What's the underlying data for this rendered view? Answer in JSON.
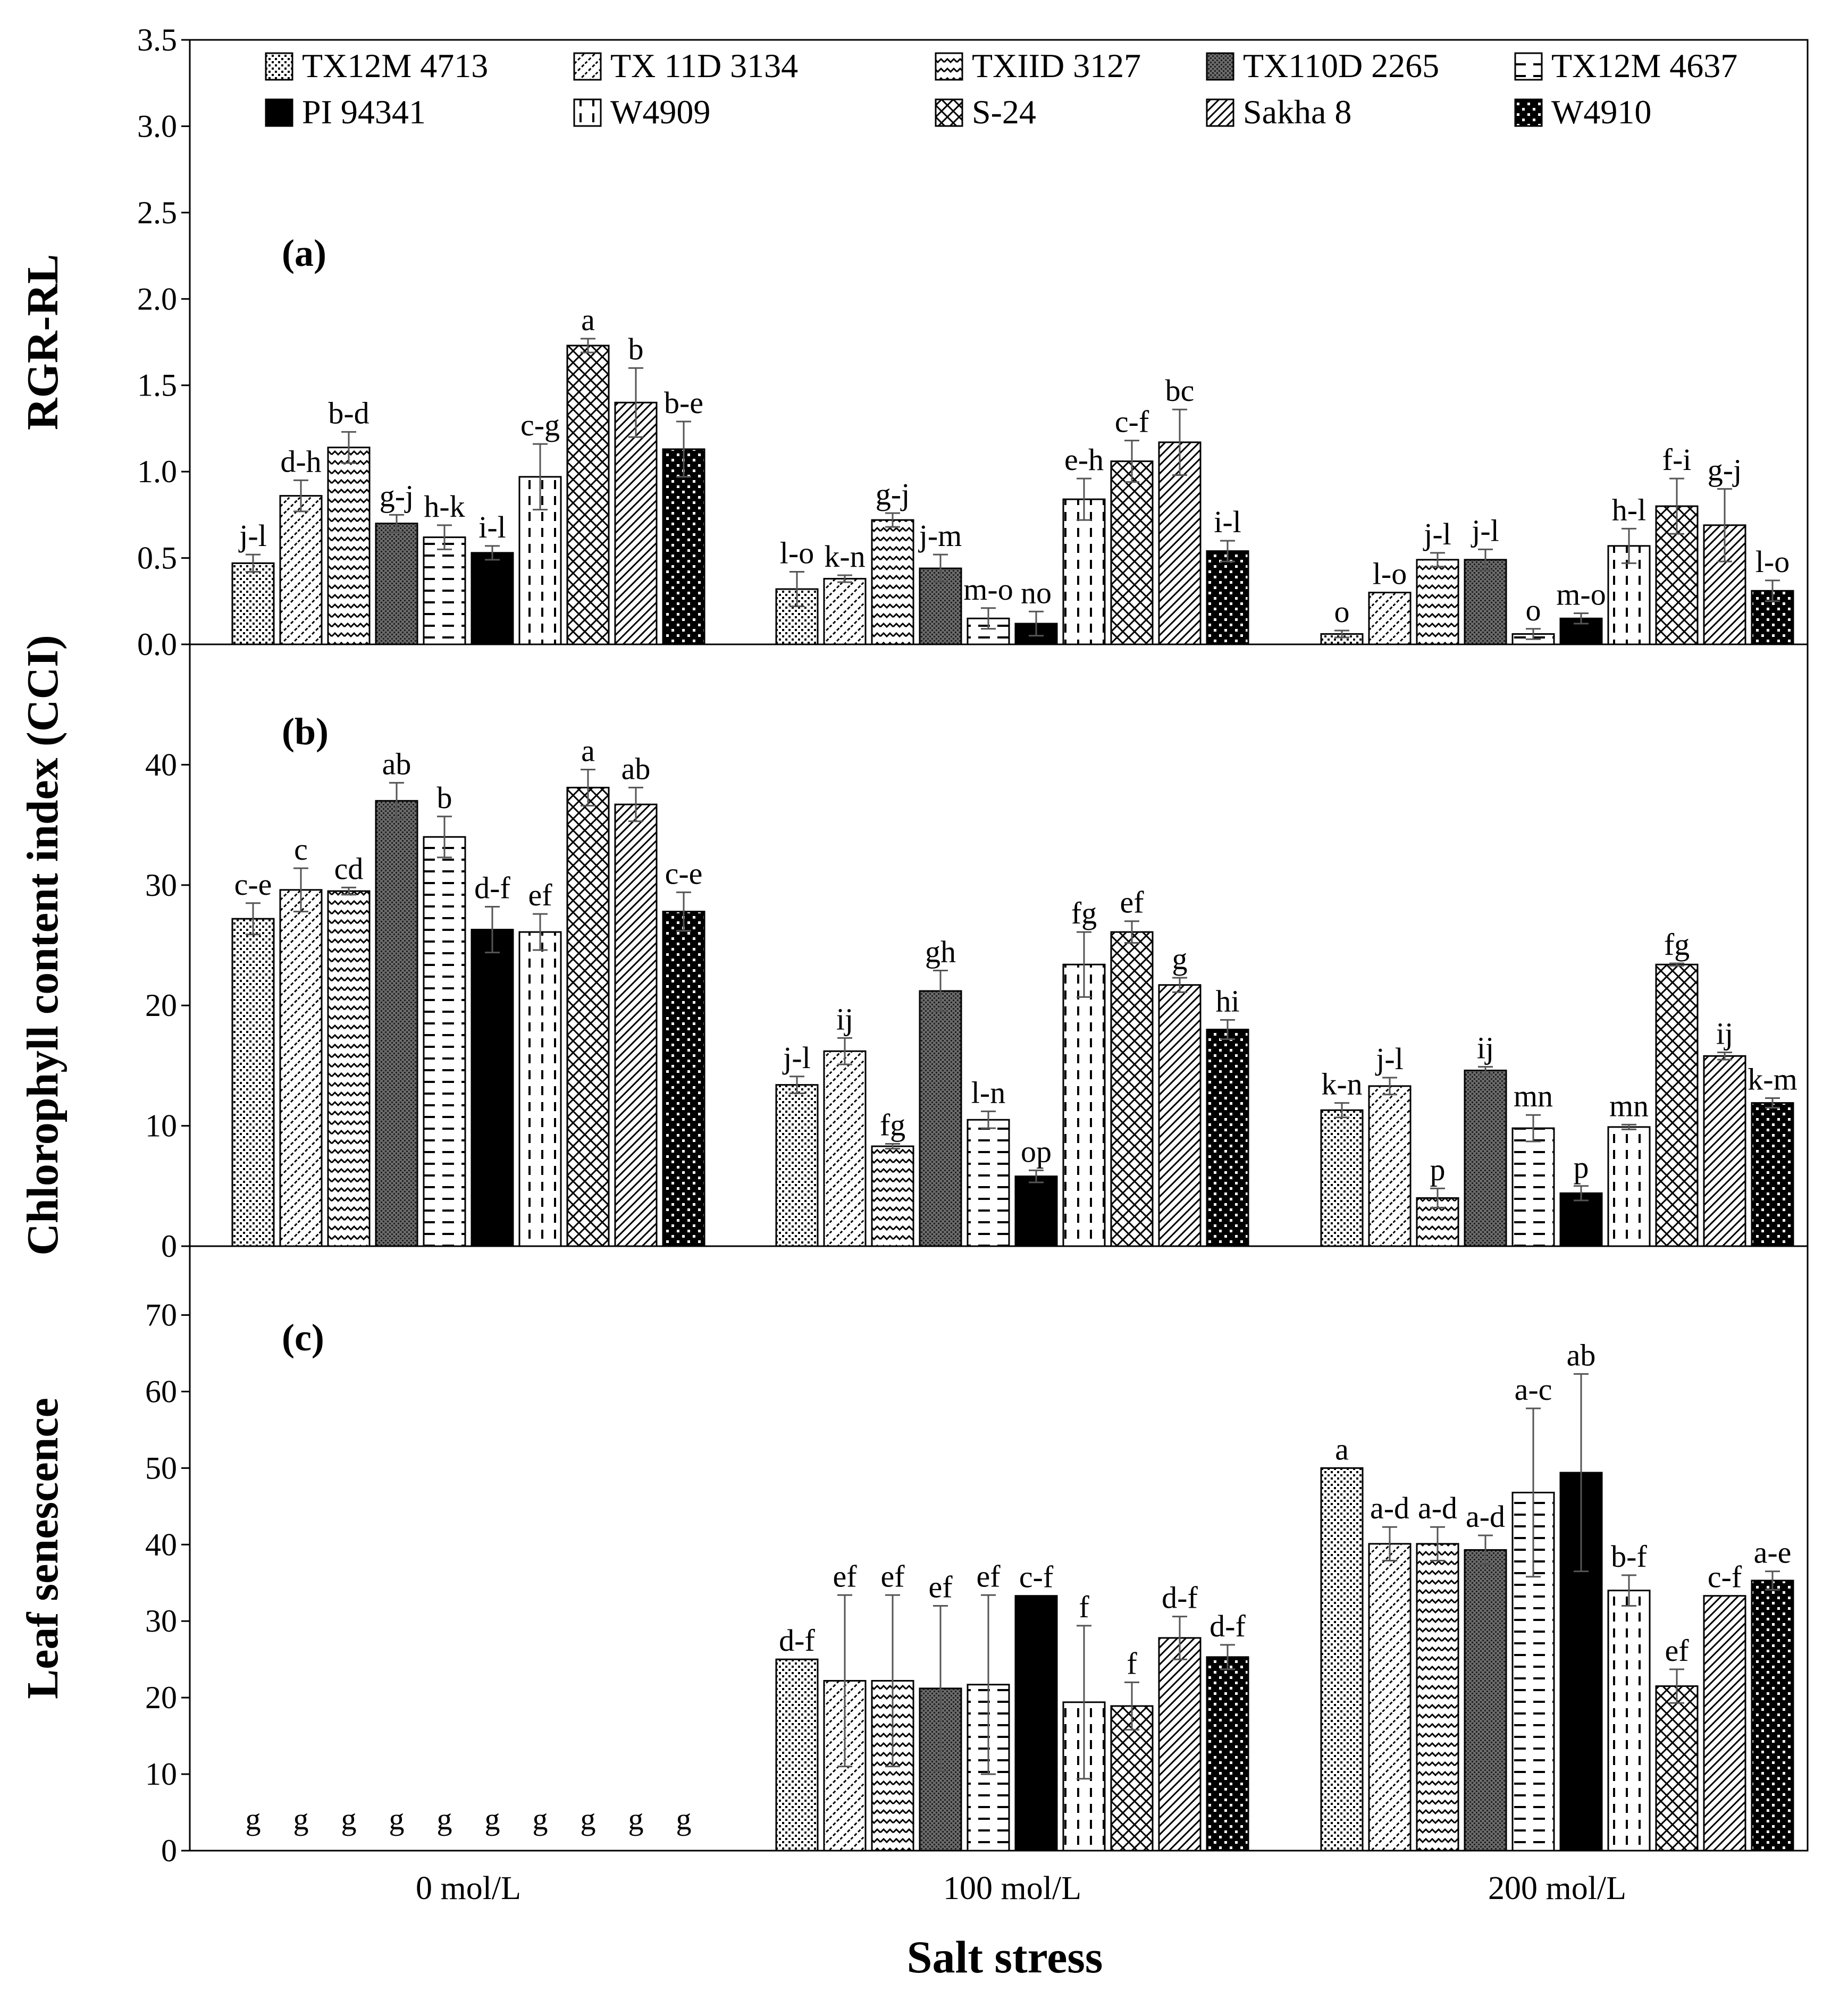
{
  "chart_data": {
    "type": "bar",
    "xlabel": "Salt stress",
    "categories": [
      "0 mol/L",
      "100 mol/L",
      "200 mol/L"
    ],
    "legend": [
      "TX12M 4713",
      "TX 11D 3134",
      "TXIID 3127",
      "TX110D 2265",
      "TX12M 4637",
      "PI 94341",
      "W4909",
      "S-24",
      "Sakha 8",
      "W4910"
    ],
    "panels": [
      {
        "label": "(a)",
        "ylabel": "RGR-RL",
        "ylim": [
          0,
          3.5
        ],
        "yticks": [
          "0.0",
          "0.5",
          "1.0",
          "1.5",
          "2.0",
          "2.5",
          "3.0",
          "3.5"
        ],
        "series_values": [
          [
            0.47,
            0.86,
            1.14,
            0.7,
            0.62,
            0.53,
            0.97,
            1.73,
            1.4,
            1.13
          ],
          [
            0.32,
            0.38,
            0.72,
            0.44,
            0.15,
            0.12,
            0.84,
            1.06,
            1.17,
            0.54
          ],
          [
            0.06,
            0.3,
            0.49,
            0.49,
            0.06,
            0.15,
            0.57,
            0.8,
            0.69,
            0.31
          ]
        ],
        "errors": [
          [
            0.05,
            0.09,
            0.09,
            0.05,
            0.07,
            0.04,
            0.19,
            0.04,
            0.2,
            0.16
          ],
          [
            0.1,
            0.02,
            0.04,
            0.08,
            0.06,
            0.07,
            0.12,
            0.12,
            0.19,
            0.06
          ],
          [
            0.02,
            0.0,
            0.04,
            0.06,
            0.03,
            0.03,
            0.1,
            0.16,
            0.21,
            0.06
          ]
        ],
        "letters": [
          [
            "j-l",
            "d-h",
            "b-d",
            "g-j",
            "h-k",
            "i-l",
            "c-g",
            "a",
            "b",
            "b-e"
          ],
          [
            "l-o",
            "k-n",
            "g-j",
            "j-m",
            "m-o",
            "no",
            "e-h",
            "c-f",
            "bc",
            "i-l"
          ],
          [
            "o",
            "l-o",
            "j-l",
            "j-l",
            "o",
            "m-o",
            "h-l",
            "f-i",
            "g-j",
            "l-o"
          ]
        ]
      },
      {
        "label": "(b)",
        "ylabel": "Chlorophyll content index (CCI)",
        "ylim": [
          0,
          50
        ],
        "yticks": [
          "0",
          "10",
          "20",
          "30",
          "40"
        ],
        "series_values": [
          [
            27.2,
            29.6,
            29.5,
            37.0,
            34.0,
            26.3,
            26.1,
            38.1,
            36.7,
            27.8
          ],
          [
            13.4,
            16.2,
            8.3,
            21.2,
            10.5,
            5.8,
            23.4,
            26.1,
            21.7,
            18.0
          ],
          [
            11.3,
            13.3,
            4.0,
            14.6,
            9.8,
            4.4,
            9.9,
            23.4,
            15.8,
            11.9
          ]
        ],
        "errors": [
          [
            1.3,
            1.8,
            0.3,
            1.5,
            1.7,
            1.9,
            1.5,
            1.5,
            1.4,
            1.6
          ],
          [
            0.7,
            1.1,
            0.2,
            1.7,
            0.7,
            0.5,
            2.7,
            0.9,
            0.6,
            0.8
          ],
          [
            0.6,
            0.7,
            0.8,
            0.3,
            1.1,
            0.6,
            0.2,
            0.1,
            0.3,
            0.4
          ]
        ],
        "letters": [
          [
            "c-e",
            "c",
            "cd",
            "ab",
            "b",
            "d-f",
            "ef",
            "a",
            "ab",
            "c-e"
          ],
          [
            "j-l",
            "ij",
            "fg",
            "gh",
            "l-n",
            "op",
            "fg",
            "ef",
            "g",
            "hi"
          ],
          [
            "k-n",
            "j-l",
            "p",
            "ij",
            "mn",
            "p",
            "mn",
            "fg",
            "ij",
            "k-m"
          ]
        ]
      },
      {
        "label": "(c)",
        "ylabel": "Leaf senescence",
        "ylim": [
          0,
          79
        ],
        "yticks": [
          "0",
          "10",
          "20",
          "30",
          "40",
          "50",
          "60",
          "70"
        ],
        "series_values": [
          [
            0,
            0,
            0,
            0,
            0,
            0,
            0,
            0,
            0,
            0
          ],
          [
            25.0,
            22.2,
            22.2,
            21.2,
            21.7,
            33.3,
            19.4,
            18.9,
            27.8,
            25.3
          ],
          [
            50.0,
            40.1,
            40.1,
            39.3,
            46.8,
            49.4,
            34.0,
            21.5,
            33.3,
            35.3
          ]
        ],
        "errors": [
          [
            0,
            0,
            0,
            0,
            0,
            0,
            0,
            0,
            0,
            0
          ],
          [
            0,
            11.2,
            11.2,
            10.8,
            11.7,
            0,
            10.0,
            3.1,
            2.8,
            1.6
          ],
          [
            0,
            2.2,
            2.2,
            1.9,
            11.0,
            12.9,
            2.0,
            2.2,
            0,
            1.2
          ]
        ],
        "letters": [
          [
            "g",
            "g",
            "g",
            "g",
            "g",
            "g",
            "g",
            "g",
            "g",
            "g"
          ],
          [
            "d-f",
            "ef",
            "ef",
            "ef",
            "ef",
            "c-f",
            "f",
            "f",
            "d-f",
            "d-f"
          ],
          [
            "a",
            "a-d",
            "a-d",
            "a-d",
            "a-c",
            "ab",
            "b-f",
            "ef",
            "c-f",
            "a-e"
          ]
        ]
      }
    ]
  }
}
